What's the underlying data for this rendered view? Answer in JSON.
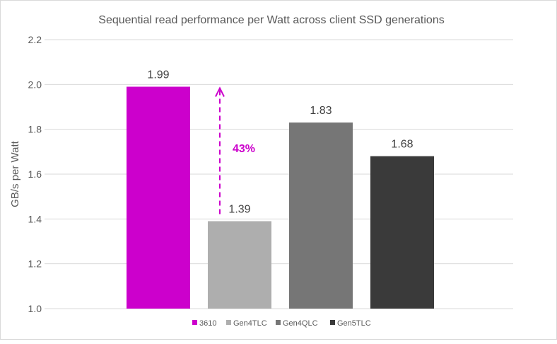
{
  "chart_data": {
    "type": "bar",
    "title": "Sequential read performance per Watt across client SSD generations",
    "xlabel": "",
    "ylabel": "GB/s per Watt",
    "ylim": [
      1.0,
      2.2
    ],
    "yticks": [
      "1.0",
      "1.2",
      "1.4",
      "1.6",
      "1.8",
      "2.0",
      "2.2"
    ],
    "grid": true,
    "legend_position": "bottom",
    "categories": [
      "3610",
      "Gen4TLC",
      "Gen4QLC",
      "Gen5TLC"
    ],
    "values": [
      1.99,
      1.39,
      1.83,
      1.68
    ],
    "data_labels": [
      "1.99",
      "1.39",
      "1.83",
      "1.68"
    ],
    "colors": [
      "#CC00CC",
      "#AEAEAE",
      "#767676",
      "#3A3A3A"
    ],
    "annotation": {
      "text": "43%",
      "from_value": 1.39,
      "to_value": 1.99,
      "color": "#CC00CC",
      "style": "dashed-arrow"
    }
  }
}
